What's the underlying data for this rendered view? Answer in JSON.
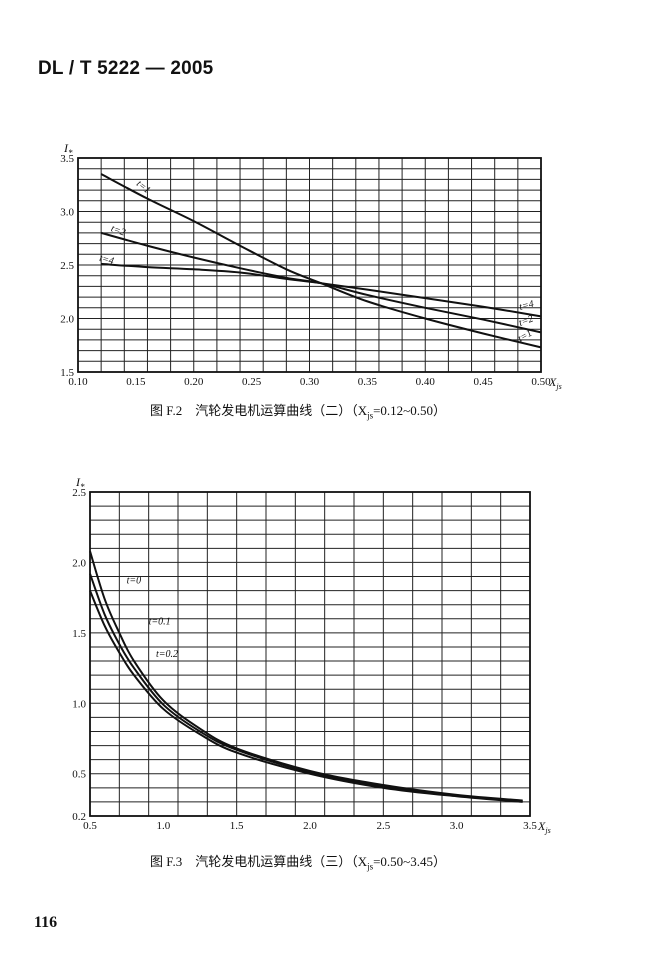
{
  "header": "DL / T 5222 — 2005",
  "page_number": "116",
  "chart_data": [
    {
      "type": "line",
      "caption": "图 F.2 汽轮发电机运算曲线（二）（X_js=0.12~0.50）",
      "caption_parts": {
        "pre": "图 F.2　汽轮发电机运算曲线（二）（X",
        "sub": "js",
        "post": "=0.12~0.50）"
      },
      "xlabel": "X",
      "xlabel_sub": "js",
      "ylabel": "I",
      "ylabel_sub": "*",
      "xlim": [
        0.1,
        0.5
      ],
      "ylim": [
        1.5,
        3.5
      ],
      "grid": true,
      "xticks": [
        "0.10",
        "0.15",
        "0.20",
        "0.25",
        "0.30",
        "0.35",
        "0.40",
        "0.45",
        "0.50"
      ],
      "yticks": [
        "1.5",
        "2.0",
        "2.5",
        "3.0",
        "3.5"
      ],
      "series": [
        {
          "name": "t=1",
          "x": [
            0.12,
            0.16,
            0.2,
            0.24,
            0.28,
            0.31,
            0.35,
            0.4,
            0.45,
            0.5
          ],
          "y": [
            3.35,
            3.12,
            2.91,
            2.68,
            2.46,
            2.33,
            2.16,
            2.0,
            1.86,
            1.73
          ]
        },
        {
          "name": "t=2",
          "x": [
            0.12,
            0.16,
            0.2,
            0.24,
            0.28,
            0.31,
            0.35,
            0.4,
            0.45,
            0.5
          ],
          "y": [
            2.8,
            2.68,
            2.57,
            2.47,
            2.38,
            2.33,
            2.22,
            2.1,
            1.99,
            1.87
          ]
        },
        {
          "name": "t=4",
          "x": [
            0.12,
            0.16,
            0.2,
            0.24,
            0.28,
            0.31,
            0.35,
            0.4,
            0.45,
            0.5
          ],
          "y": [
            2.51,
            2.48,
            2.46,
            2.43,
            2.37,
            2.33,
            2.27,
            2.19,
            2.11,
            2.02
          ]
        }
      ]
    },
    {
      "type": "line",
      "caption": "图 F.3 汽轮发电机运算曲线（三）（X_js=0.50~3.45）",
      "caption_parts": {
        "pre": "图 F.3　汽轮发电机运算曲线（三）（X",
        "sub": "js",
        "post": "=0.50~3.45）"
      },
      "xlabel": "X",
      "xlabel_sub": "js",
      "ylabel": "I",
      "ylabel_sub": "*",
      "xlim": [
        0.5,
        3.5
      ],
      "ylim": [
        0.2,
        2.5
      ],
      "grid": true,
      "xticks": [
        "0.5",
        "1.0",
        "1.5",
        "2.0",
        "2.5",
        "3.0",
        "3.5"
      ],
      "yticks": [
        "0.2",
        "0.5",
        "1.0",
        "1.5",
        "2.0",
        "2.5"
      ],
      "series": [
        {
          "name": "t=0",
          "x": [
            0.5,
            0.6,
            0.7,
            0.8,
            1.0,
            1.25,
            1.5,
            2.0,
            2.5,
            3.0,
            3.45
          ],
          "y": [
            2.08,
            1.74,
            1.5,
            1.3,
            1.02,
            0.82,
            0.68,
            0.52,
            0.42,
            0.35,
            0.31
          ]
        },
        {
          "name": "t=0.1",
          "x": [
            0.5,
            0.6,
            0.7,
            0.8,
            1.0,
            1.25,
            1.5,
            2.0,
            2.5,
            3.0,
            3.45
          ],
          "y": [
            1.92,
            1.63,
            1.42,
            1.25,
            0.99,
            0.8,
            0.67,
            0.51,
            0.41,
            0.345,
            0.305
          ]
        },
        {
          "name": "t=0.2",
          "x": [
            0.5,
            0.6,
            0.7,
            0.8,
            1.0,
            1.25,
            1.5,
            2.0,
            2.5,
            3.0,
            3.45
          ],
          "y": [
            1.8,
            1.55,
            1.36,
            1.2,
            0.96,
            0.78,
            0.65,
            0.5,
            0.4,
            0.34,
            0.3
          ]
        }
      ]
    }
  ]
}
